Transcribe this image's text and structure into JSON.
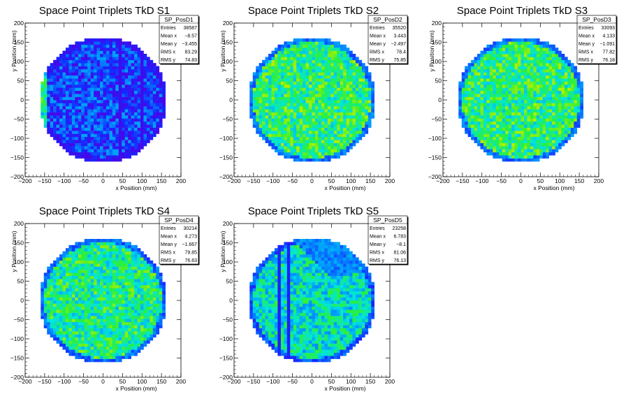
{
  "chart_data": [
    {
      "type": "heatmap",
      "title": "Space Point Triplets TkD S1",
      "xlabel": "x Position (mm)",
      "ylabel": "y Position (mm)",
      "xlim": [
        -200,
        200
      ],
      "ylim": [
        -200,
        200
      ],
      "xticks": [
        "−200",
        "−150",
        "−100",
        "−50",
        "0",
        "50",
        "100",
        "150",
        "200"
      ],
      "yticks": [
        "−200",
        "−150",
        "−100",
        "−50",
        "0",
        "50",
        "100",
        "150",
        "200"
      ],
      "stats": {
        "name": "SP_PosD1",
        "rows": [
          [
            "Entries",
            "38587"
          ],
          [
            "Mean x",
            "−8.57"
          ],
          [
            "Mean y",
            "−3.455"
          ],
          [
            "RMS x",
            "83.29"
          ],
          [
            "RMS y",
            "74.83"
          ]
        ]
      },
      "footprint": {
        "shape": "circle",
        "cx": 0,
        "cy": 0,
        "radius": 160,
        "xclip": [
          -160,
          160
        ]
      },
      "mean_level": 0.18,
      "features": "low occupancy (blue) overall; bright band at left edge near x=-155; dark vertical stripe near x=45 and x=100"
    },
    {
      "type": "heatmap",
      "title": "Space Point Triplets TkD S2",
      "xlabel": "x Position (mm)",
      "ylabel": "y Position (mm)",
      "xlim": [
        -200,
        200
      ],
      "ylim": [
        -200,
        200
      ],
      "xticks": [
        "−200",
        "−150",
        "−100",
        "−50",
        "0",
        "50",
        "100",
        "150",
        "200"
      ],
      "yticks": [
        "−200",
        "−150",
        "−100",
        "−50",
        "0",
        "50",
        "100",
        "150",
        "200"
      ],
      "stats": {
        "name": "SP_PosD2",
        "rows": [
          [
            "Entries",
            "35520"
          ],
          [
            "Mean x",
            "3.443"
          ],
          [
            "Mean y",
            "−2.497"
          ],
          [
            "RMS x",
            "78.4"
          ],
          [
            "RMS y",
            "75.85"
          ]
        ]
      },
      "footprint": {
        "shape": "circle",
        "cx": 0,
        "cy": 0,
        "radius": 160,
        "xclip": [
          -160,
          160
        ]
      },
      "mean_level": 0.55,
      "features": "uniform green/yellow occupancy"
    },
    {
      "type": "heatmap",
      "title": "Space Point Triplets TkD S3",
      "xlabel": "x Position (mm)",
      "ylabel": "y Position (mm)",
      "xlim": [
        -200,
        200
      ],
      "ylim": [
        -200,
        200
      ],
      "xticks": [
        "−200",
        "−150",
        "−100",
        "−50",
        "0",
        "50",
        "100",
        "150",
        "200"
      ],
      "yticks": [
        "−200",
        "−150",
        "−100",
        "−50",
        "0",
        "50",
        "100",
        "150",
        "200"
      ],
      "stats": {
        "name": "SP_PosD3",
        "rows": [
          [
            "Entries",
            "33093"
          ],
          [
            "Mean x",
            "4.133"
          ],
          [
            "Mean y",
            "−1.091"
          ],
          [
            "RMS x",
            "77.82"
          ],
          [
            "RMS y",
            "76.18"
          ]
        ]
      },
      "footprint": {
        "shape": "circle",
        "cx": 0,
        "cy": 0,
        "radius": 160,
        "xclip": [
          -160,
          160
        ]
      },
      "mean_level": 0.55,
      "features": "uniform green/yellow occupancy"
    },
    {
      "type": "heatmap",
      "title": "Space Point Triplets TkD S4",
      "xlabel": "x Position (mm)",
      "ylabel": "y Position (mm)",
      "xlim": [
        -200,
        200
      ],
      "ylim": [
        -200,
        200
      ],
      "xticks": [
        "−200",
        "−150",
        "−100",
        "−50",
        "0",
        "50",
        "100",
        "150",
        "200"
      ],
      "yticks": [
        "−200",
        "−150",
        "−100",
        "−50",
        "0",
        "50",
        "100",
        "150",
        "200"
      ],
      "stats": {
        "name": "SP_PosD4",
        "rows": [
          [
            "Entries",
            "30214"
          ],
          [
            "Mean x",
            "4.273"
          ],
          [
            "Mean y",
            "−1.667"
          ],
          [
            "RMS x",
            "79.85"
          ],
          [
            "RMS y",
            "76.63"
          ]
        ]
      },
      "footprint": {
        "shape": "circle",
        "cx": 0,
        "cy": 0,
        "radius": 160,
        "xclip": [
          -160,
          160
        ]
      },
      "mean_level": 0.52,
      "features": "uniform green occupancy"
    },
    {
      "type": "heatmap",
      "title": "Space Point Triplets TkD S5",
      "xlabel": "x Position (mm)",
      "ylabel": "y Position (mm)",
      "xlim": [
        -200,
        200
      ],
      "ylim": [
        -200,
        200
      ],
      "xticks": [
        "−200",
        "−150",
        "−100",
        "−50",
        "0",
        "50",
        "100",
        "150",
        "200"
      ],
      "yticks": [
        "−200",
        "−150",
        "−100",
        "−50",
        "0",
        "50",
        "100",
        "150",
        "200"
      ],
      "stats": {
        "name": "SP_PosD5",
        "rows": [
          [
            "Entries",
            "23258"
          ],
          [
            "Mean x",
            "6.783"
          ],
          [
            "Mean y",
            "−8.1"
          ],
          [
            "RMS x",
            "81.06"
          ],
          [
            "RMS y",
            "76.13"
          ]
        ]
      },
      "footprint": {
        "shape": "circle",
        "cx": 0,
        "cy": 0,
        "radius": 160,
        "xclip": [
          -160,
          160
        ]
      },
      "mean_level": 0.45,
      "features": "green occupancy with dark vertical stripes near x=-85 and x=-65; blue diagonal region in upper right"
    }
  ]
}
